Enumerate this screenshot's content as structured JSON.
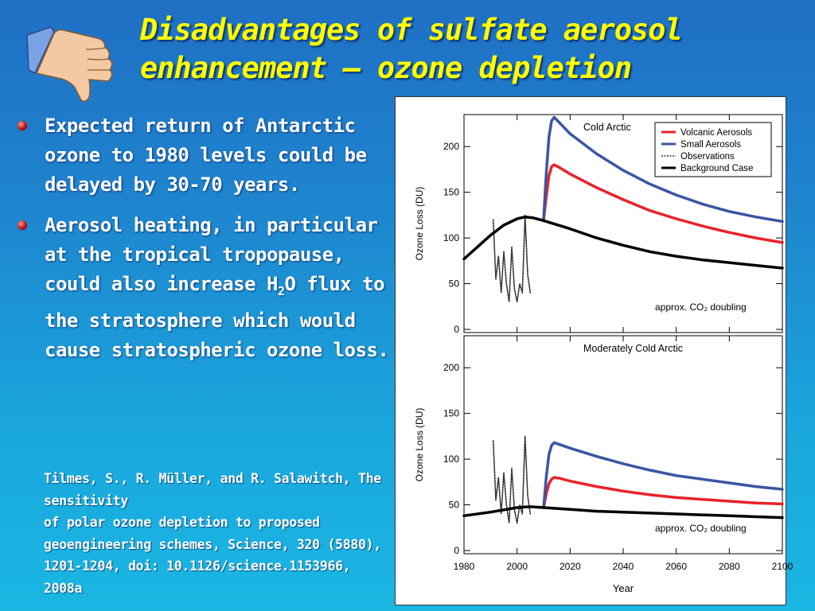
{
  "slide": {
    "title_line1": "Disadvantages of sulfate aerosol",
    "title_line2": "enhancement – ozone depletion",
    "bullet1": "Expected return of Antarctic ozone to 1980 levels could be delayed by 30-70 years.",
    "bullet2_a": "Aerosol heating, in particular at the tropical tropopause, could also increase H",
    "bullet2_sub": "2",
    "bullet2_b": "O flux to the stratosphere which would cause stratospheric ozone loss.",
    "citation_line1": "Tilmes, S., R. Müller, and R. Salawitch, The sensitivity",
    "citation_line2": "of polar ozone depletion to proposed geoengineering schemes, Science, 320 (5880), 1201-1204, doi: 10.1126/science.1153966, 2008a",
    "icon": "thumbs-down-icon",
    "colors": {
      "title": "#ffff00",
      "text": "#ffffff",
      "bullet": "#c01010"
    }
  },
  "chart_data": [
    {
      "type": "line",
      "title": "Cold Arctic",
      "ylabel": "Ozone Loss (DU)",
      "xlabel": "Year",
      "xlim": [
        1980,
        2100
      ],
      "ylim": [
        0,
        235
      ],
      "yticks": [
        0,
        50,
        100,
        150,
        200
      ],
      "xticks": [
        1980,
        2000,
        2020,
        2040,
        2060,
        2080,
        2100
      ],
      "annotation": "approx. CO₂ doubling",
      "legend_position": "top-right",
      "series": [
        {
          "name": "Volcanic Aerosols",
          "color": "#e8222a",
          "x": [
            2010,
            2011,
            2012,
            2013,
            2014,
            2016,
            2020,
            2030,
            2040,
            2050,
            2060,
            2070,
            2080,
            2090,
            2100
          ],
          "values": [
            120,
            145,
            168,
            178,
            180,
            177,
            170,
            155,
            142,
            130,
            121,
            113,
            106,
            100,
            95
          ]
        },
        {
          "name": "Small Aerosols",
          "color": "#3b55a4",
          "x": [
            2010,
            2011,
            2012,
            2013,
            2014,
            2016,
            2020,
            2030,
            2040,
            2050,
            2060,
            2070,
            2080,
            2090,
            2100
          ],
          "values": [
            120,
            170,
            210,
            228,
            232,
            226,
            214,
            192,
            174,
            159,
            147,
            137,
            129,
            123,
            118
          ]
        },
        {
          "name": "Observations",
          "color": "#333333",
          "x": [
            1991,
            1992,
            1993,
            1994,
            1995,
            1996,
            1997,
            1998,
            1999,
            2000,
            2001,
            2002,
            2003,
            2004,
            2005
          ],
          "values": [
            120,
            55,
            80,
            40,
            85,
            50,
            30,
            90,
            45,
            30,
            50,
            40,
            125,
            60,
            40
          ]
        },
        {
          "name": "Background Case",
          "color": "#000000",
          "x": [
            1980,
            1985,
            1990,
            1995,
            2000,
            2003,
            2006,
            2010,
            2020,
            2030,
            2040,
            2050,
            2060,
            2070,
            2080,
            2090,
            2100
          ],
          "values": [
            77,
            90,
            103,
            114,
            121,
            123,
            122,
            119,
            110,
            100,
            92,
            85,
            80,
            76,
            73,
            70,
            67
          ]
        }
      ]
    },
    {
      "type": "line",
      "title": "Moderately Cold Arctic",
      "ylabel": "Ozone Loss (DU)",
      "xlabel": "Year",
      "xlim": [
        1980,
        2100
      ],
      "ylim": [
        0,
        235
      ],
      "yticks": [
        0,
        50,
        100,
        150,
        200
      ],
      "xticks": [
        1980,
        2000,
        2020,
        2040,
        2060,
        2080,
        2100
      ],
      "annotation": "approx. CO₂ doubling",
      "series": [
        {
          "name": "Volcanic Aerosols",
          "color": "#e8222a",
          "x": [
            2010,
            2011,
            2012,
            2013,
            2014,
            2016,
            2020,
            2030,
            2040,
            2050,
            2060,
            2070,
            2080,
            2090,
            2100
          ],
          "values": [
            47,
            62,
            73,
            78,
            80,
            79,
            76,
            70,
            65,
            61,
            58,
            56,
            54,
            52,
            51
          ]
        },
        {
          "name": "Small Aerosols",
          "color": "#3b55a4",
          "x": [
            2010,
            2011,
            2012,
            2013,
            2014,
            2016,
            2020,
            2030,
            2040,
            2050,
            2060,
            2070,
            2080,
            2090,
            2100
          ],
          "values": [
            47,
            80,
            105,
            115,
            118,
            116,
            112,
            103,
            95,
            88,
            82,
            78,
            74,
            70,
            67
          ]
        },
        {
          "name": "Observations",
          "color": "#333333",
          "x": [
            1991,
            1992,
            1993,
            1994,
            1995,
            1996,
            1997,
            1998,
            1999,
            2000,
            2001,
            2002,
            2003,
            2004,
            2005
          ],
          "values": [
            120,
            55,
            80,
            40,
            85,
            50,
            30,
            90,
            45,
            30,
            50,
            40,
            125,
            60,
            40
          ]
        },
        {
          "name": "Background Case",
          "color": "#000000",
          "x": [
            1980,
            1990,
            2000,
            2005,
            2010,
            2020,
            2030,
            2040,
            2050,
            2060,
            2070,
            2080,
            2090,
            2100
          ],
          "values": [
            38,
            42,
            47,
            48,
            47,
            45,
            43,
            42,
            41,
            40,
            39,
            38,
            37,
            36
          ]
        }
      ]
    }
  ]
}
